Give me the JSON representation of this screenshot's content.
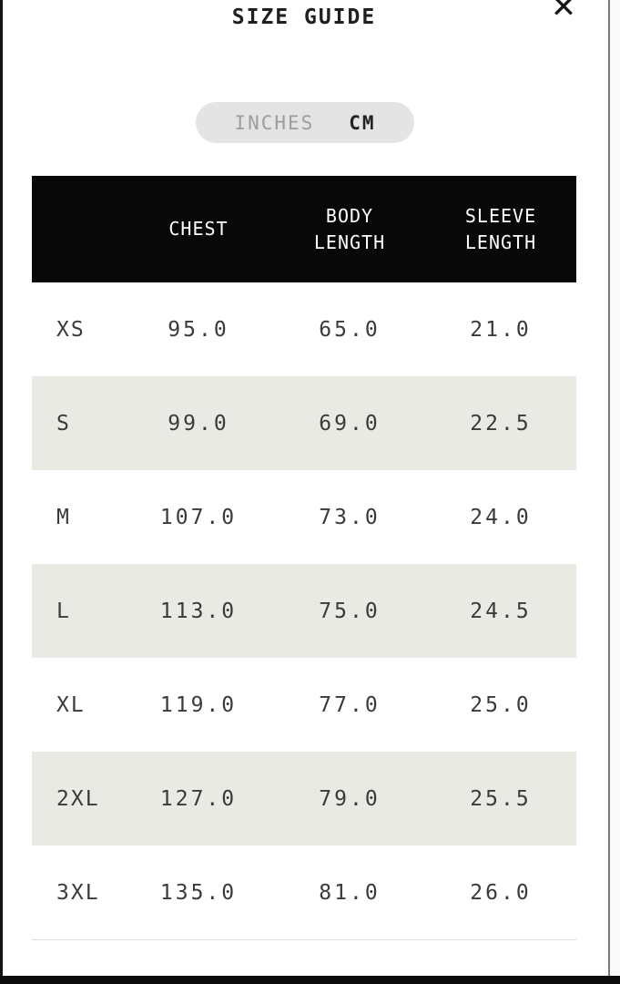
{
  "modal": {
    "title": "SIZE GUIDE",
    "close_icon": "✕"
  },
  "unit_toggle": {
    "options": [
      {
        "label": "INCHES",
        "active": false
      },
      {
        "label": "CM",
        "active": true
      }
    ]
  },
  "size_table": {
    "columns": {
      "size": "",
      "chest": "CHEST",
      "body": "BODY LENGTH",
      "sleeve": "SLEEVE LENGTH"
    },
    "rows": [
      {
        "size": "XS",
        "chest": "95.0",
        "body_length": "65.0",
        "sleeve_length": "21.0"
      },
      {
        "size": "S",
        "chest": "99.0",
        "body_length": "69.0",
        "sleeve_length": "22.5"
      },
      {
        "size": "M",
        "chest": "107.0",
        "body_length": "73.0",
        "sleeve_length": "24.0"
      },
      {
        "size": "L",
        "chest": "113.0",
        "body_length": "75.0",
        "sleeve_length": "24.5"
      },
      {
        "size": "XL",
        "chest": "119.0",
        "body_length": "77.0",
        "sleeve_length": "25.0"
      },
      {
        "size": "2XL",
        "chest": "127.0",
        "body_length": "79.0",
        "sleeve_length": "25.5"
      },
      {
        "size": "3XL",
        "chest": "135.0",
        "body_length": "81.0",
        "sleeve_length": "26.0"
      }
    ]
  },
  "colors": {
    "stripe": "#eaeae4",
    "header_bg": "#080808",
    "header_text": "#ffffff",
    "toggle_bg": "#e4e4e4",
    "inactive_unit": "#9d9d9d",
    "text": "#3a3a3a",
    "edge_black": "#121212"
  }
}
